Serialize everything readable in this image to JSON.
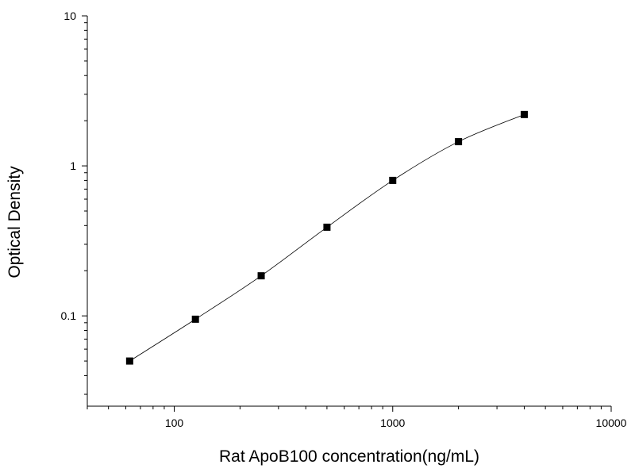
{
  "chart_data": {
    "type": "scatter",
    "xlabel": "Rat ApoB100  concentration(ng/mL)",
    "ylabel": "Optical  Density",
    "xscale": "log",
    "yscale": "log",
    "xlim": [
      40,
      10000
    ],
    "ylim": [
      0.025,
      10
    ],
    "x_ticks": [
      {
        "value": 100,
        "label": "100"
      },
      {
        "value": 1000,
        "label": "1000"
      },
      {
        "value": 10000,
        "label": "10000"
      }
    ],
    "y_ticks": [
      {
        "value": 0.1,
        "label": "0.1"
      },
      {
        "value": 1,
        "label": "1"
      },
      {
        "value": 10,
        "label": "10"
      }
    ],
    "grid": false,
    "legend": "none",
    "series": [
      {
        "x": [
          62.5,
          125,
          250,
          500,
          1000,
          2000,
          4000
        ],
        "y": [
          0.05,
          0.095,
          0.185,
          0.39,
          0.8,
          1.45,
          2.2
        ],
        "marker": "square",
        "connected": true
      }
    ],
    "colors": {
      "marker": "#000000",
      "line": "#000000",
      "axes": "#000000"
    }
  }
}
